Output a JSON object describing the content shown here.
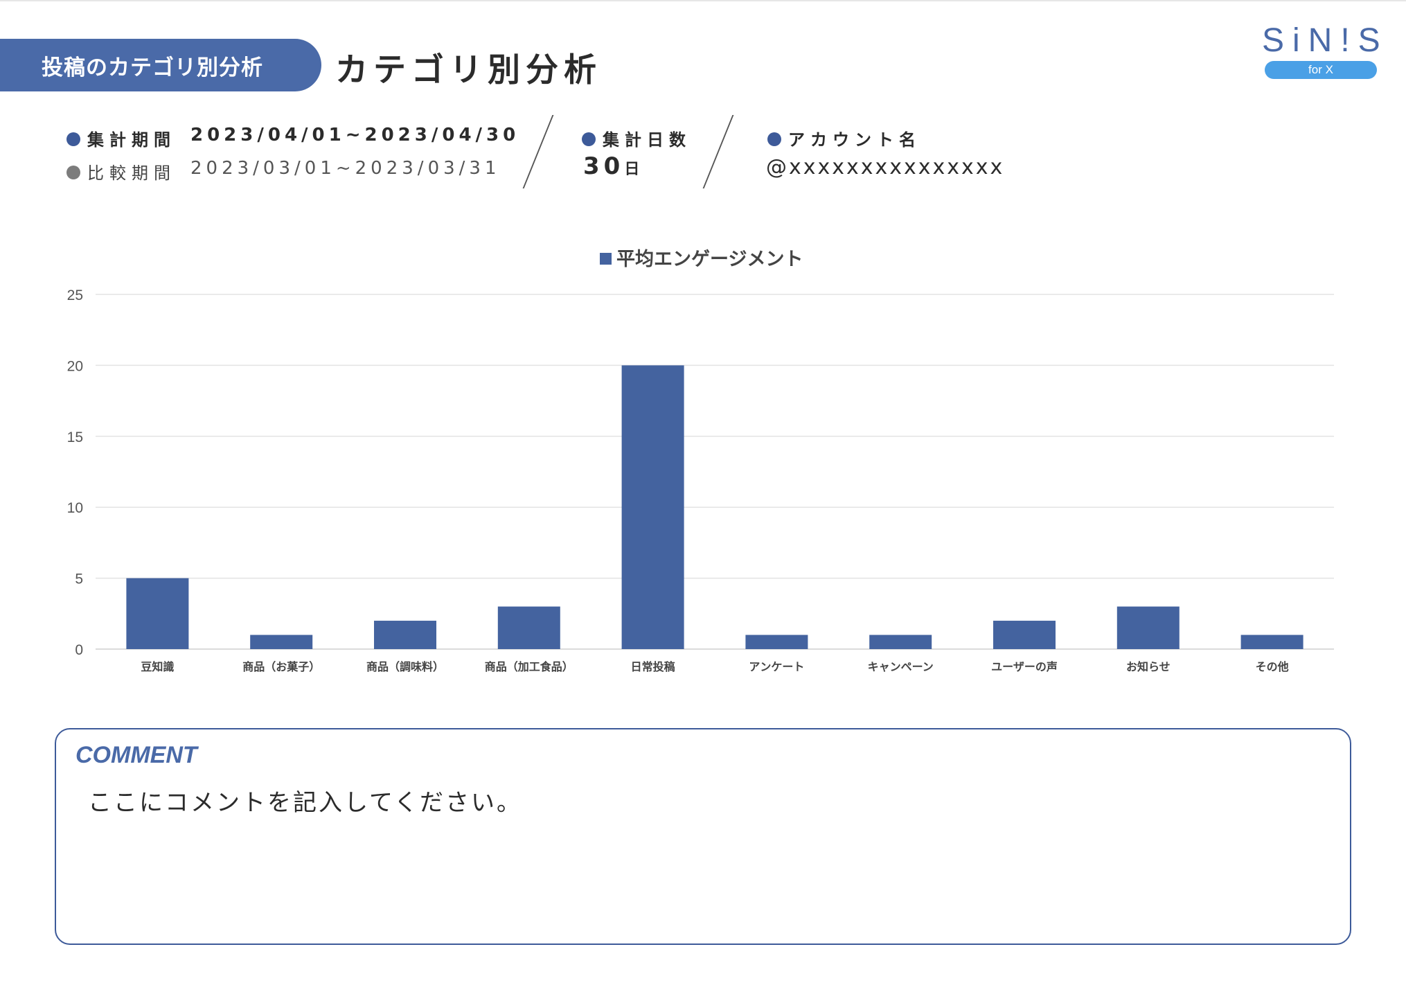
{
  "header": {
    "section_label": "投稿のカテゴリ別分析",
    "title": "カテゴリ別分析",
    "logo_text": "SiN!S",
    "logo_badge": "for X"
  },
  "meta": {
    "period_label": "集計期間",
    "period_value": "2023/04/01~2023/04/30",
    "compare_label": "比較期間",
    "compare_value": "2023/03/01~2023/03/31",
    "days_label": "集計日数",
    "days_value": "30",
    "days_unit": "日",
    "account_label": "アカウント名",
    "account_value": "@xxxxxxxxxxxxxxx"
  },
  "colors": {
    "bar": "#44639f",
    "accent": "#4a6aa8",
    "logo_badge": "#4aa0e6"
  },
  "chart_data": {
    "type": "bar",
    "legend": "平均エンゲージメント",
    "categories": [
      "豆知識",
      "商品（お菓子）",
      "商品（調味料）",
      "商品（加工食品）",
      "日常投稿",
      "アンケート",
      "キャンペーン",
      "ユーザーの声",
      "お知らせ",
      "その他"
    ],
    "series": [
      {
        "name": "平均エンゲージメント",
        "values": [
          5,
          1,
          2,
          3,
          20,
          1,
          1,
          2,
          3,
          1
        ]
      }
    ],
    "yticks": [
      "0",
      "5",
      "10",
      "15",
      "20",
      "25"
    ],
    "ylim": [
      0,
      25
    ],
    "grid": true,
    "legend_position": "top-center"
  },
  "comment": {
    "heading": "COMMENT",
    "text": "ここにコメントを記入してください。"
  }
}
